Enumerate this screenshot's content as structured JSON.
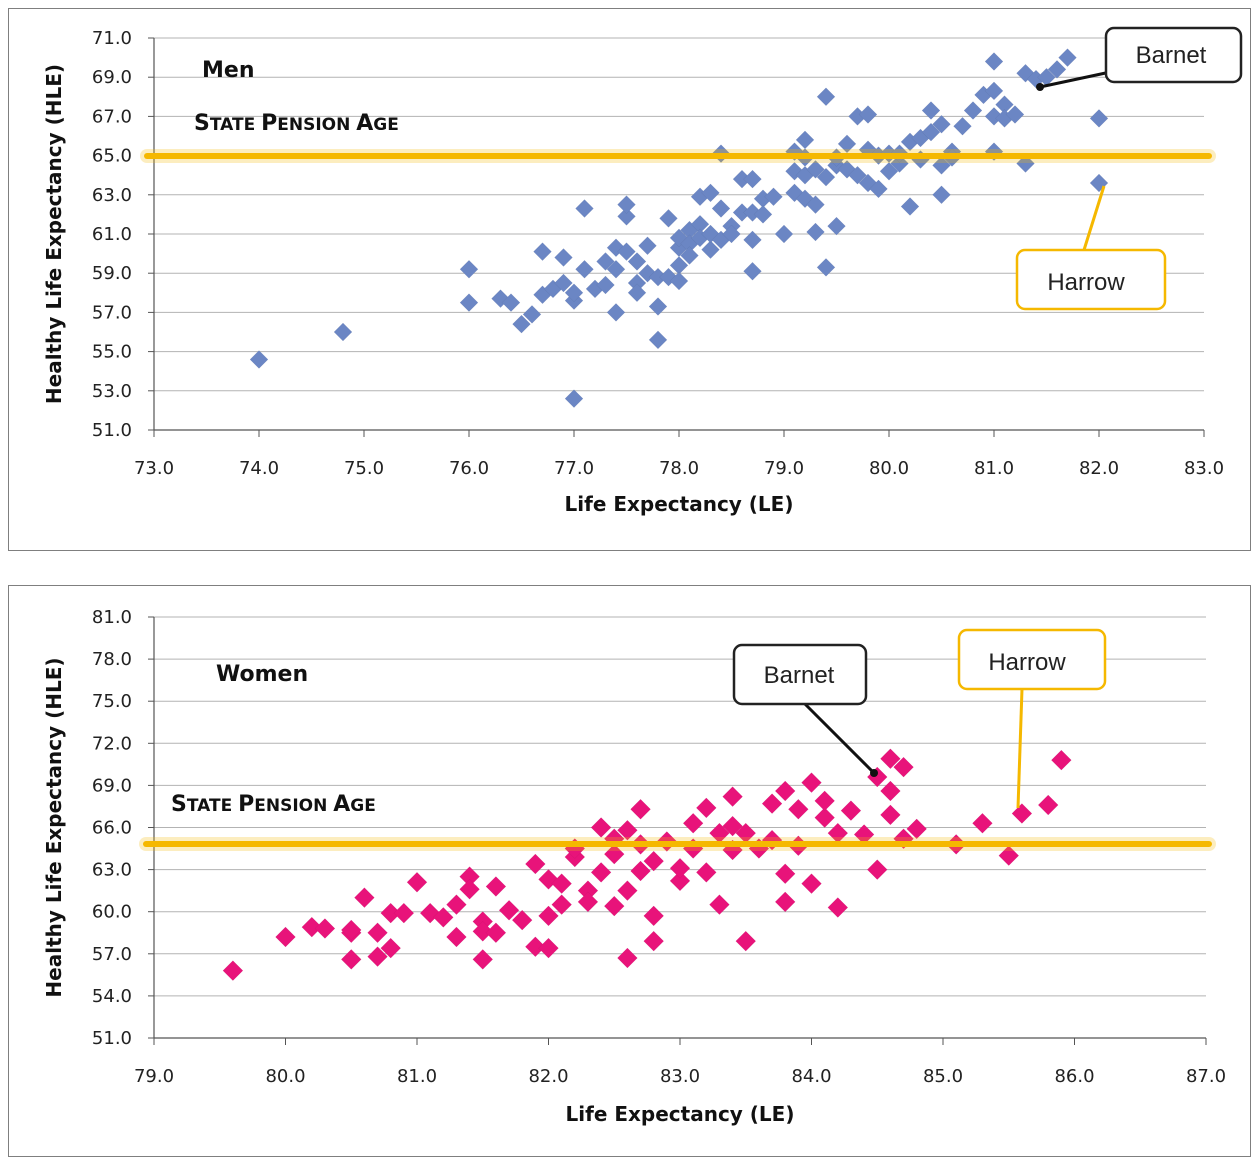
{
  "charts": [
    {
      "id": "men",
      "series_label": "Men",
      "pension_label_big": [
        "S",
        "P",
        "A"
      ],
      "pension_label_small": [
        "TATE ",
        "ENSION ",
        "GE"
      ],
      "callouts": [
        {
          "name": "barnet",
          "text": "Barnet"
        },
        {
          "name": "harrow",
          "text": "Harrow"
        }
      ]
    },
    {
      "id": "women",
      "series_label": "Women",
      "pension_label_big": [
        "S",
        "P",
        "A"
      ],
      "pension_label_small": [
        "TATE ",
        "ENSION ",
        "GE"
      ],
      "callouts": [
        {
          "name": "barnet",
          "text": "Barnet"
        },
        {
          "name": "harrow",
          "text": "Harrow"
        }
      ]
    }
  ],
  "colors": {
    "men_marker": "#6b86c4",
    "women_marker": "#e8137a",
    "pension_line": "#f5b800",
    "barnet_border": "#222222",
    "harrow_border": "#f5b800",
    "grid": "#b3b3b3"
  },
  "chart_data": [
    {
      "type": "scatter",
      "title": "Men",
      "xlabel": "Life Expectancy (LE)",
      "ylabel": "Healthy Life Expectancy (HLE)",
      "xlim": [
        73.0,
        83.0
      ],
      "ylim": [
        51.0,
        71.0
      ],
      "x_ticks": [
        "73.0",
        "74.0",
        "75.0",
        "76.0",
        "77.0",
        "78.0",
        "79.0",
        "80.0",
        "81.0",
        "82.0",
        "83.0"
      ],
      "y_ticks": [
        "51.0",
        "53.0",
        "55.0",
        "57.0",
        "59.0",
        "61.0",
        "63.0",
        "65.0",
        "67.0",
        "69.0",
        "71.0"
      ],
      "grid": true,
      "reference_line": {
        "y": 65.0,
        "label": "STATE PENSION AGE"
      },
      "annotations": [
        {
          "text": "Barnet",
          "x": 81.4,
          "y": 68.9
        },
        {
          "text": "Harrow",
          "x": 82.0,
          "y": 63.6
        }
      ],
      "series": [
        {
          "name": "Men",
          "points": [
            [
              74.0,
              54.6
            ],
            [
              74.8,
              56.0
            ],
            [
              76.0,
              57.5
            ],
            [
              76.0,
              59.2
            ],
            [
              76.3,
              57.7
            ],
            [
              76.4,
              57.5
            ],
            [
              76.5,
              56.4
            ],
            [
              76.6,
              56.9
            ],
            [
              76.7,
              57.9
            ],
            [
              76.7,
              60.1
            ],
            [
              76.8,
              58.2
            ],
            [
              76.9,
              59.8
            ],
            [
              76.9,
              58.5
            ],
            [
              77.0,
              57.6
            ],
            [
              77.0,
              58.0
            ],
            [
              77.0,
              52.6
            ],
            [
              77.1,
              62.3
            ],
            [
              77.1,
              59.2
            ],
            [
              77.2,
              58.2
            ],
            [
              77.3,
              59.6
            ],
            [
              77.3,
              58.4
            ],
            [
              77.4,
              57.0
            ],
            [
              77.4,
              60.3
            ],
            [
              77.4,
              59.2
            ],
            [
              77.5,
              60.1
            ],
            [
              77.5,
              61.9
            ],
            [
              77.5,
              62.5
            ],
            [
              77.6,
              58.5
            ],
            [
              77.6,
              59.6
            ],
            [
              77.6,
              58.0
            ],
            [
              77.7,
              59.0
            ],
            [
              77.7,
              60.4
            ],
            [
              77.8,
              58.8
            ],
            [
              77.8,
              57.3
            ],
            [
              77.8,
              55.6
            ],
            [
              77.9,
              58.8
            ],
            [
              77.9,
              61.8
            ],
            [
              78.0,
              59.4
            ],
            [
              78.0,
              60.3
            ],
            [
              78.0,
              60.8
            ],
            [
              78.0,
              58.6
            ],
            [
              78.1,
              61.2
            ],
            [
              78.1,
              60.5
            ],
            [
              78.1,
              59.9
            ],
            [
              78.2,
              61.5
            ],
            [
              78.2,
              62.9
            ],
            [
              78.2,
              60.8
            ],
            [
              78.3,
              63.1
            ],
            [
              78.3,
              60.2
            ],
            [
              78.3,
              61.0
            ],
            [
              78.4,
              62.3
            ],
            [
              78.4,
              60.7
            ],
            [
              78.4,
              65.1
            ],
            [
              78.5,
              61.4
            ],
            [
              78.5,
              61.0
            ],
            [
              78.6,
              62.1
            ],
            [
              78.6,
              63.8
            ],
            [
              78.7,
              59.1
            ],
            [
              78.7,
              60.7
            ],
            [
              78.7,
              63.8
            ],
            [
              78.7,
              62.1
            ],
            [
              78.8,
              62.8
            ],
            [
              78.8,
              62.0
            ],
            [
              78.9,
              62.9
            ],
            [
              79.0,
              61.0
            ],
            [
              79.1,
              65.2
            ],
            [
              79.1,
              64.2
            ],
            [
              79.1,
              63.1
            ],
            [
              79.2,
              65.8
            ],
            [
              79.2,
              64.0
            ],
            [
              79.2,
              62.8
            ],
            [
              79.2,
              64.9
            ],
            [
              79.3,
              64.3
            ],
            [
              79.3,
              61.1
            ],
            [
              79.3,
              62.5
            ],
            [
              79.4,
              59.3
            ],
            [
              79.4,
              63.9
            ],
            [
              79.4,
              68.0
            ],
            [
              79.5,
              61.4
            ],
            [
              79.5,
              64.5
            ],
            [
              79.5,
              64.9
            ],
            [
              79.6,
              64.3
            ],
            [
              79.6,
              65.6
            ],
            [
              79.7,
              67.0
            ],
            [
              79.7,
              64.0
            ],
            [
              79.8,
              65.3
            ],
            [
              79.8,
              63.6
            ],
            [
              79.8,
              67.1
            ],
            [
              79.9,
              63.3
            ],
            [
              79.9,
              65.0
            ],
            [
              80.0,
              64.2
            ],
            [
              80.0,
              65.1
            ],
            [
              80.1,
              64.6
            ],
            [
              80.1,
              65.1
            ],
            [
              80.2,
              65.7
            ],
            [
              80.2,
              62.4
            ],
            [
              80.3,
              64.8
            ],
            [
              80.3,
              65.9
            ],
            [
              80.4,
              67.3
            ],
            [
              80.4,
              66.2
            ],
            [
              80.5,
              63.0
            ],
            [
              80.5,
              64.5
            ],
            [
              80.5,
              66.6
            ],
            [
              80.6,
              65.2
            ],
            [
              80.6,
              64.9
            ],
            [
              80.7,
              66.5
            ],
            [
              80.8,
              67.3
            ],
            [
              80.9,
              68.1
            ],
            [
              81.0,
              65.2
            ],
            [
              81.0,
              67.0
            ],
            [
              81.0,
              69.8
            ],
            [
              81.0,
              68.3
            ],
            [
              81.1,
              67.6
            ],
            [
              81.1,
              66.9
            ],
            [
              81.2,
              67.1
            ],
            [
              81.3,
              64.6
            ],
            [
              81.3,
              69.2
            ],
            [
              81.4,
              68.9
            ],
            [
              81.5,
              69.0
            ],
            [
              81.6,
              69.4
            ],
            [
              81.7,
              70.0
            ],
            [
              82.0,
              66.9
            ],
            [
              82.0,
              63.6
            ]
          ]
        }
      ]
    },
    {
      "type": "scatter",
      "title": "Women",
      "xlabel": "Life Expectancy (LE)",
      "ylabel": "Healthy Life Expectancy (HLE)",
      "xlim": [
        79.0,
        87.0
      ],
      "ylim": [
        51.0,
        81.0
      ],
      "x_ticks": [
        "79.0",
        "80.0",
        "81.0",
        "82.0",
        "83.0",
        "84.0",
        "85.0",
        "86.0",
        "87.0"
      ],
      "y_ticks": [
        "51.0",
        "54.0",
        "57.0",
        "60.0",
        "63.0",
        "66.0",
        "69.0",
        "72.0",
        "75.0",
        "78.0",
        "81.0"
      ],
      "grid": true,
      "reference_line": {
        "y": 65.0,
        "label": "STATE PENSION AGE"
      },
      "annotations": [
        {
          "text": "Barnet",
          "x": 84.5,
          "y": 69.3
        },
        {
          "text": "Harrow",
          "x": 85.6,
          "y": 67.0
        }
      ],
      "series": [
        {
          "name": "Women",
          "points": [
            [
              79.6,
              55.8
            ],
            [
              80.0,
              58.2
            ],
            [
              80.2,
              58.9
            ],
            [
              80.3,
              58.8
            ],
            [
              80.5,
              58.5
            ],
            [
              80.5,
              56.6
            ],
            [
              80.5,
              58.7
            ],
            [
              80.6,
              61.0
            ],
            [
              80.7,
              56.8
            ],
            [
              80.7,
              58.5
            ],
            [
              80.8,
              57.4
            ],
            [
              80.8,
              59.9
            ],
            [
              80.9,
              59.9
            ],
            [
              81.0,
              62.1
            ],
            [
              81.1,
              59.9
            ],
            [
              81.2,
              59.6
            ],
            [
              81.3,
              58.2
            ],
            [
              81.3,
              60.5
            ],
            [
              81.4,
              62.5
            ],
            [
              81.4,
              61.6
            ],
            [
              81.5,
              59.3
            ],
            [
              81.5,
              56.6
            ],
            [
              81.5,
              58.6
            ],
            [
              81.6,
              61.8
            ],
            [
              81.6,
              58.5
            ],
            [
              81.7,
              60.1
            ],
            [
              81.8,
              59.4
            ],
            [
              81.9,
              57.5
            ],
            [
              81.9,
              63.4
            ],
            [
              82.0,
              62.3
            ],
            [
              82.0,
              59.7
            ],
            [
              82.0,
              57.4
            ],
            [
              82.1,
              60.5
            ],
            [
              82.1,
              62.0
            ],
            [
              82.2,
              63.9
            ],
            [
              82.2,
              64.5
            ],
            [
              82.3,
              61.5
            ],
            [
              82.3,
              60.7
            ],
            [
              82.4,
              66.0
            ],
            [
              82.4,
              62.8
            ],
            [
              82.5,
              65.2
            ],
            [
              82.5,
              64.1
            ],
            [
              82.5,
              60.4
            ],
            [
              82.6,
              65.8
            ],
            [
              82.6,
              56.7
            ],
            [
              82.6,
              61.5
            ],
            [
              82.7,
              62.9
            ],
            [
              82.7,
              64.8
            ],
            [
              82.7,
              67.3
            ],
            [
              82.8,
              59.7
            ],
            [
              82.8,
              57.9
            ],
            [
              82.8,
              63.6
            ],
            [
              82.9,
              65.0
            ],
            [
              83.0,
              62.2
            ],
            [
              83.0,
              63.1
            ],
            [
              83.1,
              66.3
            ],
            [
              83.1,
              64.5
            ],
            [
              83.2,
              67.4
            ],
            [
              83.2,
              62.8
            ],
            [
              83.3,
              60.5
            ],
            [
              83.3,
              65.6
            ],
            [
              83.4,
              64.4
            ],
            [
              83.4,
              66.1
            ],
            [
              83.4,
              68.2
            ],
            [
              83.5,
              57.9
            ],
            [
              83.5,
              65.6
            ],
            [
              83.6,
              64.5
            ],
            [
              83.7,
              65.1
            ],
            [
              83.7,
              67.7
            ],
            [
              83.8,
              62.7
            ],
            [
              83.8,
              60.7
            ],
            [
              83.8,
              68.6
            ],
            [
              83.9,
              64.7
            ],
            [
              83.9,
              67.3
            ],
            [
              84.0,
              69.2
            ],
            [
              84.0,
              62.0
            ],
            [
              84.1,
              66.7
            ],
            [
              84.1,
              67.9
            ],
            [
              84.2,
              65.6
            ],
            [
              84.2,
              60.3
            ],
            [
              84.3,
              67.2
            ],
            [
              84.4,
              65.5
            ],
            [
              84.5,
              69.6
            ],
            [
              84.5,
              63.0
            ],
            [
              84.6,
              70.9
            ],
            [
              84.6,
              68.6
            ],
            [
              84.6,
              66.9
            ],
            [
              84.7,
              65.2
            ],
            [
              84.7,
              70.3
            ],
            [
              84.8,
              65.9
            ],
            [
              85.1,
              64.8
            ],
            [
              85.3,
              66.3
            ],
            [
              85.5,
              64.0
            ],
            [
              85.6,
              67.0
            ],
            [
              85.8,
              67.6
            ],
            [
              85.9,
              70.8
            ]
          ]
        }
      ]
    }
  ]
}
